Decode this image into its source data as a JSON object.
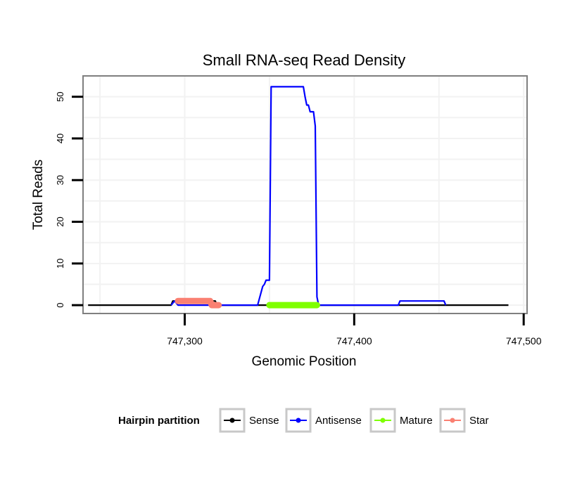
{
  "chart_data": {
    "type": "line",
    "title": "Small RNA-seq Read Density",
    "xlabel": "Genomic Position",
    "ylabel": "Total Reads",
    "xlim": [
      747240,
      747502
    ],
    "ylim": [
      -2,
      55
    ],
    "xticks": [
      747300,
      747400,
      747500
    ],
    "xtick_labels": [
      "747,300",
      "747,400",
      "747,500"
    ],
    "yticks": [
      0,
      10,
      20,
      30,
      40,
      50
    ],
    "ytick_labels": [
      "0",
      "10",
      "20",
      "30",
      "40",
      "50"
    ],
    "grid": true,
    "legend": {
      "title": "Hairpin partition",
      "position": "bottom",
      "entries": [
        "Sense",
        "Antisense",
        "Mature",
        "Star"
      ]
    },
    "series": [
      {
        "name": "Sense",
        "color": "#000000",
        "points": [
          [
            747243,
            0
          ],
          [
            747292,
            0
          ],
          [
            747293,
            1
          ],
          [
            747294,
            1
          ],
          [
            747318,
            1
          ],
          [
            747319,
            0
          ],
          [
            747491,
            0
          ]
        ]
      },
      {
        "name": "Antisense",
        "color": "#0000ff",
        "points": [
          [
            747292,
            0
          ],
          [
            747294,
            1
          ],
          [
            747296,
            0
          ],
          [
            747343,
            0
          ],
          [
            747346,
            4.5
          ],
          [
            747347,
            5
          ],
          [
            747348,
            6
          ],
          [
            747350,
            6
          ],
          [
            747351,
            52.4
          ],
          [
            747370,
            52.4
          ],
          [
            747371,
            50
          ],
          [
            747372,
            48
          ],
          [
            747373,
            48
          ],
          [
            747374,
            46.4
          ],
          [
            747376,
            46.4
          ],
          [
            747377,
            43
          ],
          [
            747378,
            2
          ],
          [
            747379,
            0
          ],
          [
            747426,
            0
          ],
          [
            747427,
            1
          ],
          [
            747453,
            1
          ],
          [
            747454,
            0
          ]
        ]
      },
      {
        "name": "Mature",
        "color": "#7fff00",
        "points": [
          [
            747350,
            0
          ],
          [
            747378,
            0
          ]
        ]
      },
      {
        "name": "Star",
        "color": "#fa8072",
        "points": [
          [
            747296,
            1
          ],
          [
            747315,
            1
          ],
          [
            747316,
            0
          ],
          [
            747320,
            0
          ]
        ]
      }
    ]
  }
}
